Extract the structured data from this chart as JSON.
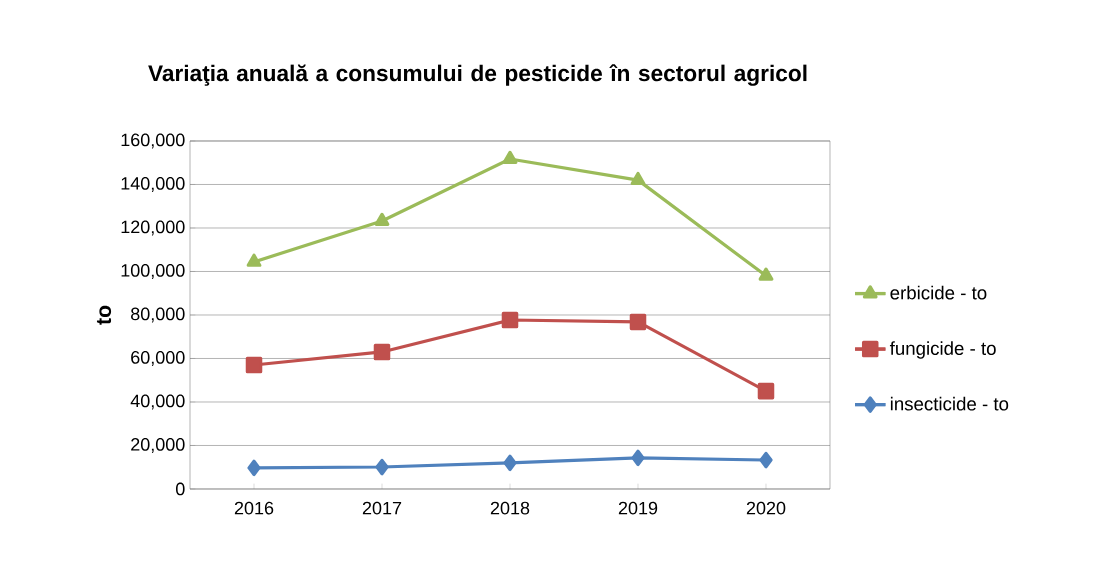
{
  "chart_data": {
    "type": "line",
    "title": "Variaţia anuală a consumului de pesticide în sectorul agricol",
    "ylabel": "to",
    "categories": [
      "2016",
      "2017",
      "2018",
      "2019",
      "2020"
    ],
    "series": [
      {
        "name": "erbicide - to",
        "color": "#9bbb59",
        "marker": "triangle",
        "values": [
          104400,
          123200,
          151700,
          142000,
          98000
        ]
      },
      {
        "name": "fungicide - to",
        "color": "#c0504d",
        "marker": "square",
        "values": [
          57000,
          63000,
          77700,
          76800,
          45000
        ]
      },
      {
        "name": "insecticide - to",
        "color": "#4f81bd",
        "marker": "diamond",
        "values": [
          9700,
          10100,
          12000,
          14300,
          13300
        ]
      }
    ],
    "ylim": [
      0,
      160000
    ],
    "yticks": [
      0,
      {
        "value": 20000,
        "label": "20,000"
      },
      {
        "value": 40000,
        "label": "40,000"
      },
      {
        "value": 60000,
        "label": "60,000"
      },
      {
        "value": 80000,
        "label": "80,000"
      },
      {
        "value": 100000,
        "label": "100,000"
      },
      {
        "value": 120000,
        "label": "120,000"
      },
      {
        "value": 140000,
        "label": "140,000"
      },
      {
        "value": 160000,
        "label": "160,000"
      }
    ],
    "grid": "y",
    "legend": "right",
    "line_style": "solid"
  }
}
